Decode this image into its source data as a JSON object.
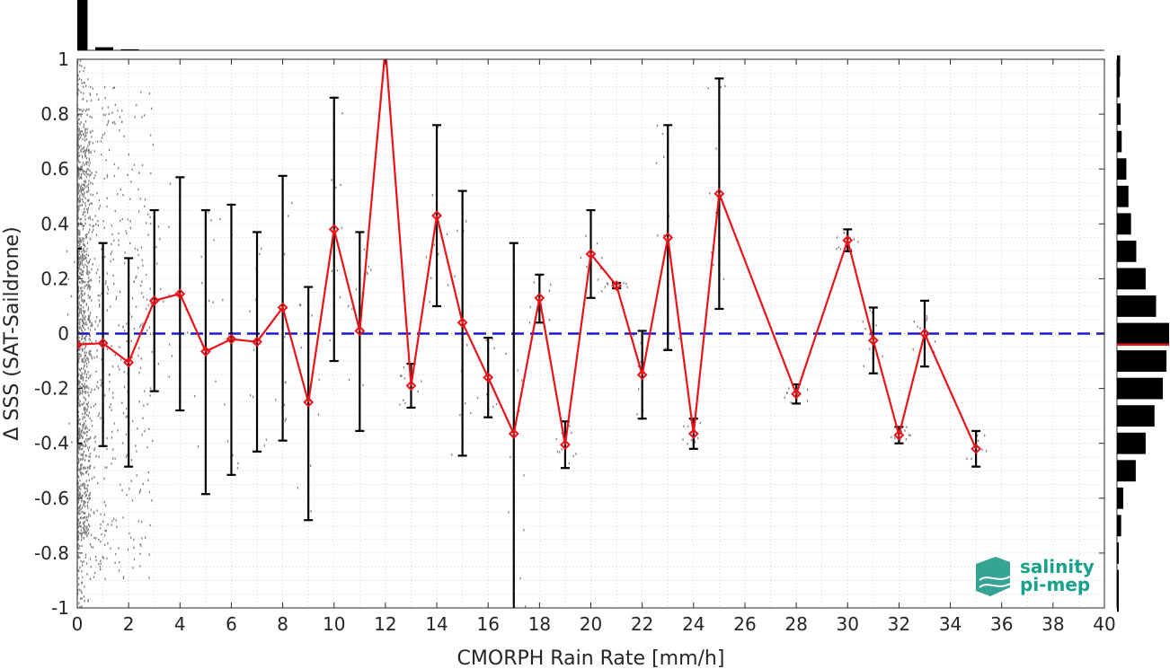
{
  "chart_data": {
    "type": "line",
    "xlabel": "CMORPH Rain Rate [mm/h]",
    "ylabel": "Δ SSS (SAT-Saildrone)",
    "xlim": [
      0,
      40
    ],
    "ylim": [
      -1,
      1
    ],
    "x_ticks": [
      0,
      2,
      4,
      6,
      8,
      10,
      12,
      14,
      16,
      18,
      20,
      22,
      24,
      26,
      28,
      30,
      32,
      34,
      36,
      38,
      40
    ],
    "y_ticks": [
      -1,
      -0.8,
      -0.6,
      -0.4,
      -0.2,
      0,
      0.2,
      0.4,
      0.6,
      0.8,
      1
    ],
    "y_tick_labels": [
      "-1",
      "-0.8",
      "-0.6",
      "-0.4",
      "-0.2",
      "0",
      "0.2",
      "0.4",
      "0.6",
      "0.8",
      "1"
    ],
    "grid": true,
    "reference_line": {
      "y": 0,
      "style": "dashed",
      "color": "#1a1ad6"
    },
    "series": [
      {
        "color": "#e8141a",
        "marker": "diamond",
        "points": [
          {
            "x": 0,
            "y": -0.04,
            "lo": -0.4,
            "hi": 0.31
          },
          {
            "x": 1,
            "y": -0.035,
            "lo": -0.41,
            "hi": 0.33
          },
          {
            "x": 2,
            "y": -0.105,
            "lo": -0.485,
            "hi": 0.275
          },
          {
            "x": 3,
            "y": 0.12,
            "lo": -0.21,
            "hi": 0.45
          },
          {
            "x": 4,
            "y": 0.145,
            "lo": -0.28,
            "hi": 0.57
          },
          {
            "x": 5,
            "y": -0.065,
            "lo": -0.585,
            "hi": 0.45
          },
          {
            "x": 6,
            "y": -0.02,
            "lo": -0.515,
            "hi": 0.47
          },
          {
            "x": 7,
            "y": -0.03,
            "lo": -0.43,
            "hi": 0.37
          },
          {
            "x": 8,
            "y": 0.095,
            "lo": -0.39,
            "hi": 0.575
          },
          {
            "x": 9,
            "y": -0.25,
            "lo": -0.68,
            "hi": 0.17
          },
          {
            "x": 10,
            "y": 0.38,
            "lo": -0.1,
            "hi": 0.86
          },
          {
            "x": 11,
            "y": 0.01,
            "lo": -0.355,
            "hi": 0.37
          },
          {
            "x": 12,
            "y": 1.04
          },
          {
            "x": 13,
            "y": -0.19,
            "lo": -0.27,
            "hi": -0.11
          },
          {
            "x": 14,
            "y": 0.43,
            "lo": 0.1,
            "hi": 0.76
          },
          {
            "x": 15,
            "y": 0.04,
            "lo": -0.445,
            "hi": 0.52
          },
          {
            "x": 16,
            "y": -0.16,
            "lo": -0.305,
            "hi": -0.015
          },
          {
            "x": 17,
            "y": -0.365,
            "lo": -1.06,
            "hi": 0.33
          },
          {
            "x": 18,
            "y": 0.13,
            "lo": 0.04,
            "hi": 0.215
          },
          {
            "x": 19,
            "y": -0.405,
            "lo": -0.49,
            "hi": -0.32
          },
          {
            "x": 20,
            "y": 0.29,
            "lo": 0.13,
            "hi": 0.45
          },
          {
            "x": 21,
            "y": 0.175,
            "lo": 0.165,
            "hi": 0.185
          },
          {
            "x": 22,
            "y": -0.15,
            "lo": -0.31,
            "hi": 0.01
          },
          {
            "x": 23,
            "y": 0.35,
            "lo": -0.06,
            "hi": 0.76
          },
          {
            "x": 24,
            "y": -0.365,
            "lo": -0.42,
            "hi": -0.31
          },
          {
            "x": 25,
            "y": 0.51,
            "lo": 0.09,
            "hi": 0.93
          },
          {
            "x": 28,
            "y": -0.22,
            "lo": -0.255,
            "hi": -0.185
          },
          {
            "x": 30,
            "y": 0.34,
            "lo": 0.3,
            "hi": 0.38
          },
          {
            "x": 31,
            "y": -0.025,
            "lo": -0.145,
            "hi": 0.095
          },
          {
            "x": 32,
            "y": -0.37,
            "lo": -0.4,
            "hi": -0.34
          },
          {
            "x": 33,
            "y": 0.0,
            "lo": -0.12,
            "hi": 0.12
          },
          {
            "x": 35,
            "y": -0.42,
            "lo": -0.485,
            "hi": -0.355
          }
        ]
      }
    ],
    "top_histogram": [
      {
        "x0": 0,
        "x1": 0.4,
        "level": 1.0
      },
      {
        "x0": 0.7,
        "x1": 1.4,
        "level": 0.06
      },
      {
        "x0": 1.7,
        "x1": 2.4,
        "level": 0.02
      }
    ],
    "right_histogram": [
      {
        "y": 0.975,
        "level": 0.06
      },
      {
        "y": 0.9,
        "level": 0.05
      },
      {
        "y": 0.8,
        "level": 0.07
      },
      {
        "y": 0.7,
        "level": 0.09
      },
      {
        "y": 0.6,
        "level": 0.18
      },
      {
        "y": 0.5,
        "level": 0.22
      },
      {
        "y": 0.4,
        "level": 0.27
      },
      {
        "y": 0.3,
        "level": 0.37
      },
      {
        "y": 0.2,
        "level": 0.55
      },
      {
        "y": 0.1,
        "level": 0.75
      },
      {
        "y": 0.0,
        "level": 1.0
      },
      {
        "y": -0.1,
        "level": 0.95
      },
      {
        "y": -0.2,
        "level": 0.88
      },
      {
        "y": -0.3,
        "level": 0.72
      },
      {
        "y": -0.4,
        "level": 0.55
      },
      {
        "y": -0.5,
        "level": 0.36
      },
      {
        "y": -0.6,
        "level": 0.12
      },
      {
        "y": -0.7,
        "level": 0.08
      },
      {
        "y": -0.8,
        "level": 0.03
      },
      {
        "y": -0.9,
        "level": 0.02
      },
      {
        "y": -0.975,
        "level": 0.01
      }
    ],
    "median_marker_y": -0.04
  },
  "logo": {
    "line1": "salinity",
    "line2": "pi-mep"
  },
  "colors": {
    "series": "#e8141a",
    "errorbar": "#000000",
    "zero_line": "#1a1ad6",
    "scatter": "#7f7f7f",
    "histogram": "#000000",
    "grid": "#c8c8c8",
    "logo_text": "#16a28a",
    "logo_mark": "#1f9a88"
  }
}
